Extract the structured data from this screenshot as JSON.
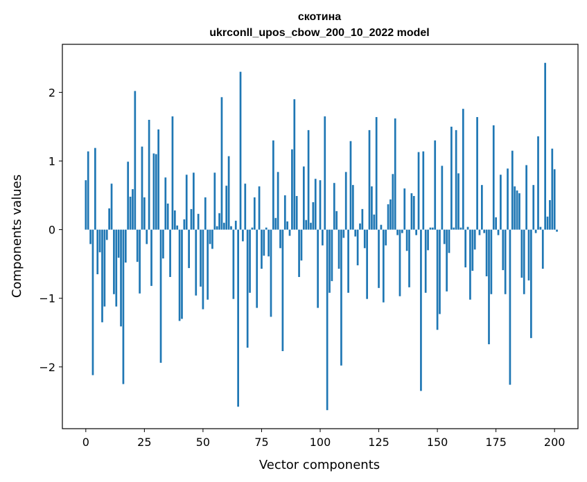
{
  "chart_data": {
    "type": "bar",
    "title_line1": "скотина",
    "title_line2": "ukrconll_upos_cbow_200_10_2022 model",
    "xlabel": "Vector components",
    "ylabel": "Components values",
    "xlim": [
      -10,
      210
    ],
    "ylim": [
      -2.9,
      2.7
    ],
    "xticks": [
      0,
      25,
      50,
      75,
      100,
      125,
      150,
      175,
      200
    ],
    "yticks": [
      -2,
      -1,
      0,
      1,
      2
    ],
    "xtick_labels": [
      "0",
      "25",
      "50",
      "75",
      "100",
      "125",
      "150",
      "175",
      "200"
    ],
    "ytick_labels": [
      "−2",
      "−1",
      "0",
      "1",
      "2"
    ],
    "grid": false,
    "bar_color": "#1f77b4",
    "values": [
      0.72,
      1.14,
      -0.21,
      -2.12,
      1.19,
      -0.65,
      -0.33,
      -1.35,
      -1.12,
      -0.15,
      0.31,
      0.67,
      -0.94,
      -1.12,
      -0.41,
      -1.41,
      -2.25,
      -0.48,
      0.99,
      0.48,
      0.59,
      2.02,
      -0.47,
      -0.93,
      1.21,
      0.47,
      -0.21,
      1.6,
      -0.82,
      1.11,
      1.1,
      1.46,
      -1.94,
      -0.42,
      0.76,
      0.38,
      -0.69,
      1.65,
      0.28,
      0.06,
      -1.33,
      -1.3,
      0.15,
      0.8,
      -0.56,
      0.3,
      0.83,
      -0.96,
      0.23,
      -0.83,
      -1.16,
      0.47,
      -1.02,
      -0.21,
      -0.28,
      0.83,
      0.05,
      0.24,
      1.93,
      0.1,
      0.64,
      1.07,
      0.05,
      -1.01,
      0.13,
      -2.58,
      2.3,
      -0.17,
      0.67,
      -1.72,
      -0.92,
      0.03,
      0.47,
      -1.14,
      0.63,
      -0.57,
      -0.38,
      0.03,
      -0.39,
      -1.27,
      1.3,
      0.17,
      0.84,
      -0.27,
      -1.77,
      0.5,
      0.12,
      -0.09,
      1.17,
      1.9,
      0.49,
      -0.69,
      -0.45,
      0.92,
      0.14,
      1.45,
      0.1,
      0.4,
      0.74,
      -1.14,
      0.72,
      -0.23,
      1.65,
      -2.63,
      -0.92,
      -0.75,
      0.68,
      0.27,
      -0.57,
      -1.98,
      -0.12,
      0.84,
      -0.92,
      1.29,
      0.65,
      -0.1,
      -0.52,
      0.09,
      0.3,
      -0.27,
      -1.01,
      1.45,
      0.63,
      0.22,
      1.64,
      -0.85,
      0.07,
      -1.06,
      -0.23,
      0.37,
      0.44,
      0.81,
      1.62,
      -0.08,
      -0.97,
      -0.05,
      0.6,
      -0.31,
      -0.84,
      0.53,
      0.49,
      -0.08,
      1.13,
      -2.35,
      1.14,
      -0.92,
      -0.3,
      0.03,
      0.03,
      1.3,
      -1.46,
      -1.23,
      0.93,
      -0.21,
      -0.9,
      -0.34,
      1.5,
      0.03,
      1.45,
      0.82,
      0.03,
      1.76,
      -0.55,
      0.04,
      -1.02,
      -0.6,
      -0.29,
      1.64,
      -0.08,
      0.65,
      -0.05,
      -0.68,
      -1.67,
      -0.94,
      1.52,
      0.18,
      -0.08,
      0.8,
      -0.59,
      -0.94,
      0.89,
      -2.26,
      1.15,
      0.63,
      0.57,
      0.53,
      -0.7,
      -0.94,
      0.94,
      -0.74,
      -1.58,
      0.65,
      -0.05,
      1.36,
      0.04,
      -0.57,
      2.43,
      0.19,
      0.43,
      1.18,
      0.88,
      -0.03
    ]
  }
}
